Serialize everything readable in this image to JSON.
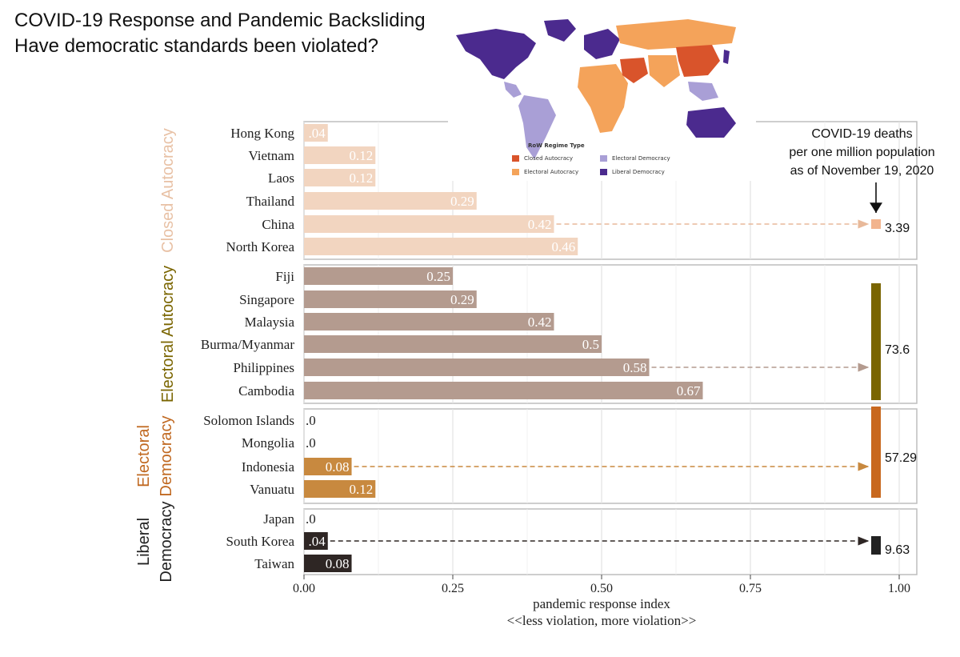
{
  "title": {
    "line1": "COVID-19 Response and Pandemic Backsliding",
    "line2": "Have democratic standards been violated?"
  },
  "map": {
    "legend_title": "RoW Regime Type",
    "legend_items": [
      {
        "label": "Closed Autocracy",
        "color": "#d9542b"
      },
      {
        "label": "Electoral Democracy",
        "color": "#a99fd6"
      },
      {
        "label": "Electoral Autocracy",
        "color": "#f4a35a"
      },
      {
        "label": "Liberal Democracy",
        "color": "#4b2a8e"
      }
    ]
  },
  "deaths_note": {
    "line1": "COVID-19 deaths",
    "line2": "per one million population",
    "line3": "as of November  19, 2020"
  },
  "chart_data": {
    "type": "bar",
    "orientation": "horizontal",
    "xlabel": "pandemic response index",
    "xlabel2": "<<less violation, more violation>>",
    "xlim": [
      0,
      1
    ],
    "xticks": [
      "0.00",
      "0.25",
      "0.50",
      "0.75",
      "1.00"
    ],
    "grid": true,
    "panels": [
      {
        "name": "Closed Autocracy",
        "color": "#f2d5c0",
        "label_color": "#e8c1a5",
        "categories": [
          "Hong Kong",
          "Vietnam",
          "Laos",
          "Thailand",
          "China",
          "North Korea"
        ],
        "values": [
          0.04,
          0.12,
          0.12,
          0.29,
          0.42,
          0.46
        ],
        "value_labels": [
          ".04",
          "0.12",
          "0.12",
          "0.29",
          "0.42",
          "0.46"
        ],
        "deaths_per_million": "3.39",
        "arrow_from": "China"
      },
      {
        "name": "Electoral Autocracy",
        "color": "#b49b8f",
        "label_color": "#7a6500",
        "categories": [
          "Fiji",
          "Singapore",
          "Malaysia",
          "Burma/Myanmar",
          "Philippines",
          "Cambodia"
        ],
        "values": [
          0.25,
          0.29,
          0.42,
          0.5,
          0.58,
          0.67
        ],
        "value_labels": [
          "0.25",
          "0.29",
          "0.42",
          "0.5",
          "0.58",
          "0.67"
        ],
        "deaths_per_million": "73.6",
        "arrow_from": "Philippines"
      },
      {
        "name": "Electoral Democracy",
        "color": "#c8893f",
        "label_color": "#c06820",
        "categories": [
          "Solomon Islands",
          "Mongolia",
          "Indonesia",
          "Vanuatu"
        ],
        "values": [
          0,
          0,
          0.08,
          0.12
        ],
        "value_labels": [
          ".0",
          ".0",
          "0.08",
          "0.12"
        ],
        "deaths_per_million": "57.29",
        "arrow_from": "Indonesia"
      },
      {
        "name": "Liberal Democracy",
        "color": "#2e2624",
        "label_color": "#222222",
        "categories": [
          "Japan",
          "South Korea",
          "Taiwan"
        ],
        "values": [
          0,
          0.04,
          0.08
        ],
        "value_labels": [
          ".0",
          ".04",
          "0.08"
        ],
        "deaths_per_million": "9.63",
        "arrow_from": "South Korea"
      }
    ]
  }
}
